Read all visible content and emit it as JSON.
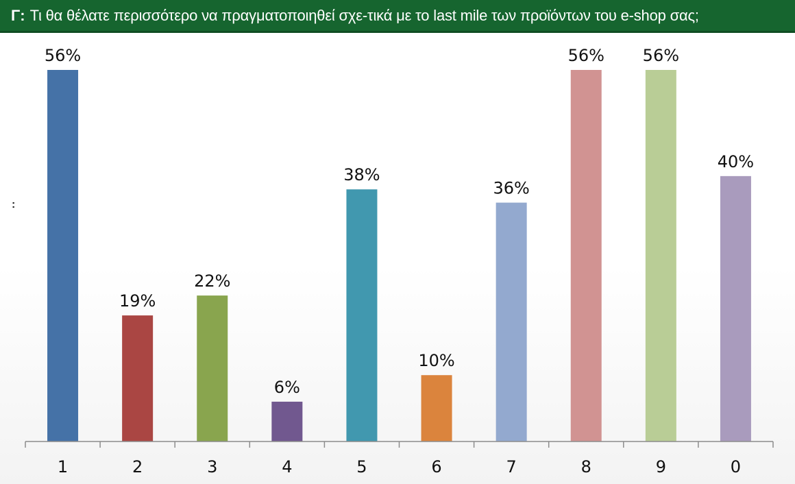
{
  "header": {
    "prefix": "Γ:",
    "question": "Τι θα θέλατε περισσότερο να πραγματοποιηθεί σχε-τικά με το last mile των προϊόντων του e-shop σας;"
  },
  "side_mark": ":",
  "chart_data": {
    "type": "bar",
    "title": "",
    "xlabel": "",
    "ylabel": "",
    "ylim": [
      0,
      56
    ],
    "grid": false,
    "legend": "none",
    "categories": [
      "1",
      "2",
      "3",
      "4",
      "5",
      "6",
      "7",
      "8",
      "9",
      "0"
    ],
    "values": [
      56,
      19,
      22,
      6,
      38,
      10,
      36,
      56,
      56,
      40
    ],
    "value_labels": [
      "56%",
      "19%",
      "22%",
      "6%",
      "38%",
      "10%",
      "36%",
      "56%",
      "56%",
      "40%"
    ],
    "colors": [
      "#4572a7",
      "#aa4643",
      "#89a54e",
      "#71588f",
      "#4198af",
      "#db843d",
      "#93a9cf",
      "#d19392",
      "#b9cd96",
      "#a99bbd"
    ]
  }
}
